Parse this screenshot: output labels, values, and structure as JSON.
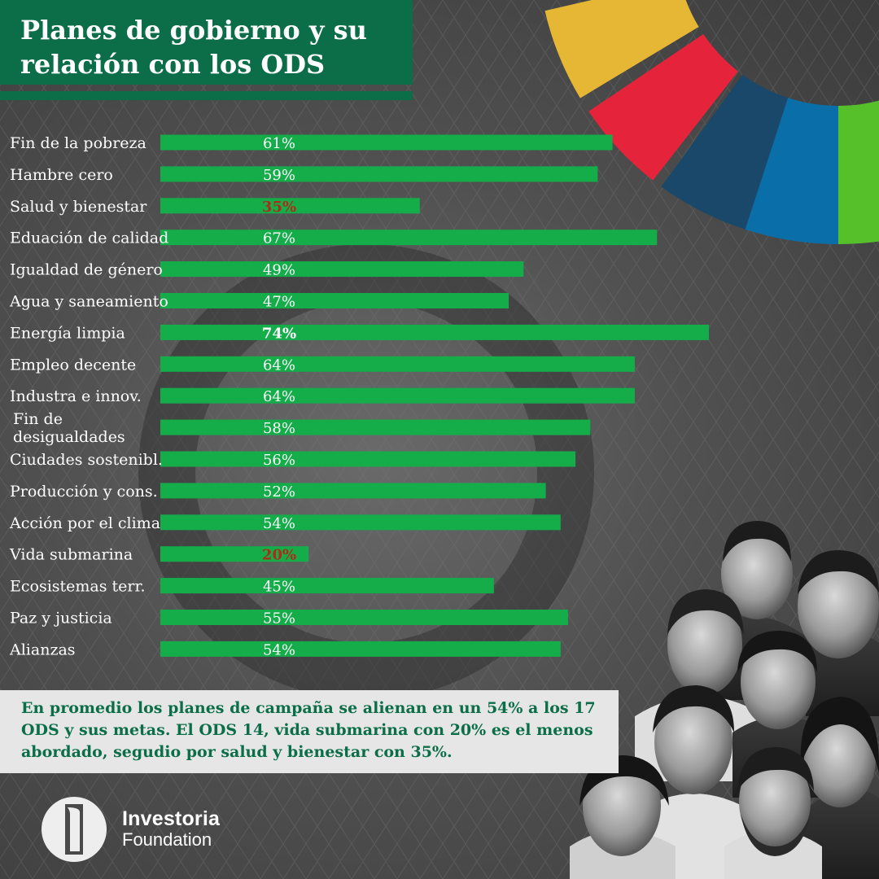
{
  "header": {
    "title": "Planes de gobierno y su relación con los ODS"
  },
  "chart_data": {
    "type": "bar",
    "orientation": "horizontal",
    "categories": [
      "Fin de la pobreza",
      "Hambre cero",
      "Salud y bienestar",
      "Eduación de calidad",
      "Igualdad de género",
      "Agua y saneamiento",
      "Energía limpia",
      "Empleo decente",
      "Industra e innov.",
      "Fin de desigualdades",
      "Ciudades sostenibl.",
      "Producción y cons.",
      "Acción por el clima",
      "Vida submarina",
      "Ecosistemas terr.",
      "Paz y justicia",
      "Alianzas"
    ],
    "values": [
      61,
      59,
      35,
      67,
      49,
      47,
      74,
      64,
      64,
      58,
      56,
      52,
      54,
      20,
      45,
      55,
      54
    ],
    "value_labels": [
      "61%",
      "59%",
      "35%",
      "67%",
      "49%",
      "47%",
      "74%",
      "64%",
      "64%",
      "58%",
      "56%",
      "52%",
      "54%",
      "20%",
      "45%",
      "55%",
      "54%"
    ],
    "highlight_max": [
      6
    ],
    "highlight_min": [
      2,
      13
    ],
    "xlim": [
      0,
      74
    ],
    "grid": false,
    "legend": "none",
    "colors": {
      "bar": "#14ad4a",
      "label": "#ffffff",
      "low": "#b02a18",
      "max": "#ffffff"
    }
  },
  "note": {
    "text": "En promedio los planes de campaña se alienan en un 54% a los 17 ODS y sus metas. El ODS 14, vida submarina con 20% es el menos abordado, segudio por salud y bienestar con 35%."
  },
  "brand": {
    "name": "Investoria",
    "sub": "Foundation",
    "color": "#0b6e48"
  },
  "decor": {
    "sdg_wheel_colors": [
      "#4c9f38",
      "#e5b735",
      "#e5243b",
      "#19486a",
      "#0a6fa8",
      "#56c02b",
      "#26bde2"
    ],
    "icons": [
      "sdg-wheel-icon",
      "investoria-logo-icon",
      "candidates-portrait-icon"
    ]
  }
}
